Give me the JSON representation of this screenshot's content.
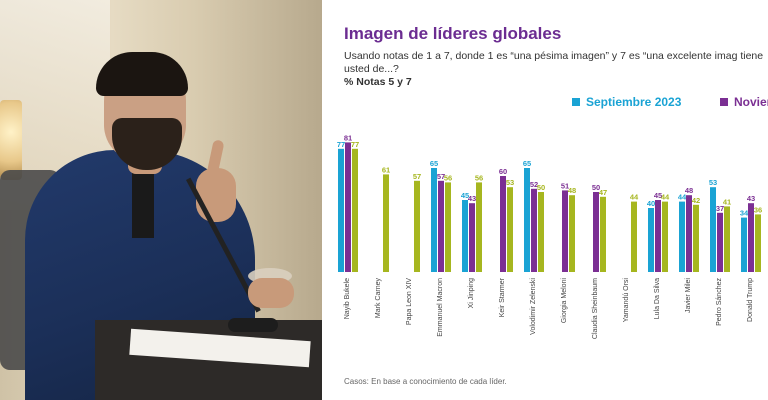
{
  "chart_data": {
    "type": "bar",
    "title": "Imagen de líderes globales",
    "subtitle": "Usando notas de 1 a 7, donde 1 es “una pésima imagen” y 7 es “una excelente imag tiene usted de...?",
    "subtitle2": "% Notas 5 y 7",
    "footnote": "Casos: En base a conocimiento de cada líder.",
    "categories": [
      "Nayib Bukele",
      "Mark Carney",
      "Papa Leon XIV",
      "Emmanuel Macron",
      "Xi Jinping",
      "Keir Starmer",
      "Volodimir Zelenski",
      "Giorgia Meloni",
      "Claudia Sheinbaum",
      "Yamandú Orsi",
      "Lula Da Silva",
      "Javier Milei",
      "Pedro Sánchez",
      "Donald Trump"
    ],
    "series": [
      {
        "name": "Septiembre 2023",
        "color": "#1aa3d4",
        "values": [
          77,
          null,
          null,
          65,
          45,
          null,
          65,
          null,
          null,
          null,
          40,
          44,
          53,
          34
        ]
      },
      {
        "name": "Noviem",
        "color": "#7b2f93",
        "values": [
          81,
          null,
          null,
          57,
          43,
          60,
          52,
          51,
          50,
          null,
          45,
          48,
          37,
          43
        ]
      },
      {
        "name": "",
        "color": "#a6b61f",
        "values": [
          77,
          61,
          57,
          56,
          56,
          53,
          50,
          48,
          47,
          44,
          44,
          42,
          41,
          36
        ]
      }
    ],
    "ylim": [
      0,
      100
    ]
  }
}
